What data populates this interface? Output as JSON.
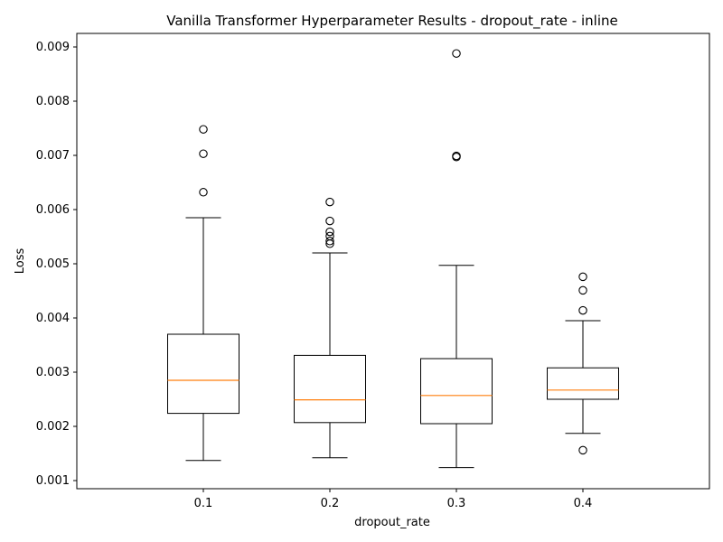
{
  "chart_data": {
    "type": "box",
    "title": "Vanilla Transformer Hyperparameter Results - dropout_rate - inline",
    "xlabel": "dropout_rate",
    "ylabel": "Loss",
    "ylim": [
      0.00085,
      0.00925
    ],
    "yticks": [
      "0.001",
      "0.002",
      "0.003",
      "0.004",
      "0.005",
      "0.006",
      "0.007",
      "0.008",
      "0.009"
    ],
    "ytick_values": [
      0.001,
      0.002,
      0.003,
      0.004,
      0.005,
      0.006,
      0.007,
      0.008,
      0.009
    ],
    "categories": [
      "0.1",
      "0.2",
      "0.3",
      "0.4"
    ],
    "grid": false,
    "colors": {
      "box": "#000000",
      "median": "#ff7f0e",
      "flier": "#000000"
    },
    "boxes": [
      {
        "category": "0.1",
        "whisker_low": 0.00137,
        "q1": 0.00224,
        "median": 0.00285,
        "q3": 0.0037,
        "whisker_high": 0.00585,
        "outliers": [
          0.00632,
          0.00703,
          0.00748
        ]
      },
      {
        "category": "0.2",
        "whisker_low": 0.00142,
        "q1": 0.00207,
        "median": 0.00249,
        "q3": 0.00331,
        "whisker_high": 0.0052,
        "outliers": [
          0.00537,
          0.00542,
          0.00551,
          0.00559,
          0.00579,
          0.00614
        ]
      },
      {
        "category": "0.3",
        "whisker_low": 0.00124,
        "q1": 0.00205,
        "median": 0.00257,
        "q3": 0.00325,
        "whisker_high": 0.00497,
        "outliers": [
          0.00697,
          0.00699,
          0.00888
        ]
      },
      {
        "category": "0.4",
        "whisker_low": 0.00187,
        "q1": 0.0025,
        "median": 0.00267,
        "q3": 0.00308,
        "whisker_high": 0.00395,
        "outliers": [
          0.00156,
          0.00414,
          0.00451,
          0.00476
        ]
      }
    ]
  }
}
